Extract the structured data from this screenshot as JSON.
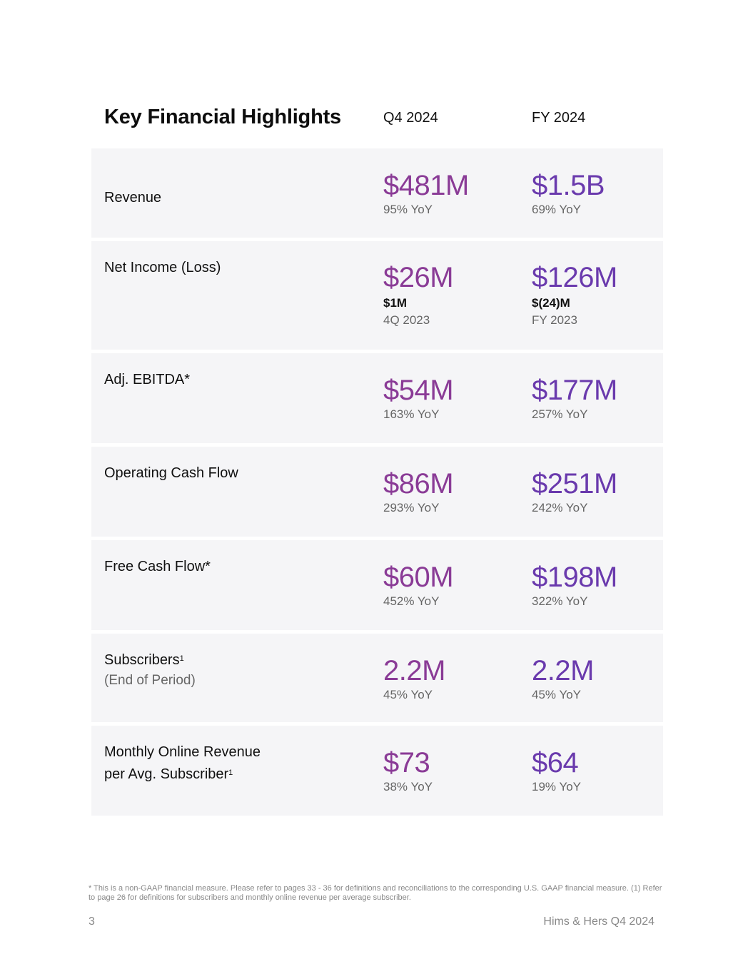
{
  "header": {
    "title": "Key Financial Highlights",
    "col_q": "Q4 2024",
    "col_fy": "FY 2024"
  },
  "rows": [
    {
      "label": "Revenue",
      "q_value": "$481M",
      "q_sub": "95% YoY",
      "fy_value": "$1.5B",
      "fy_sub": "69% YoY"
    },
    {
      "label": "Net Income (Loss)",
      "q_value": "$26M",
      "q_prior": "$1M",
      "q_sub": "4Q 2023",
      "fy_value": "$126M",
      "fy_prior": "$(24)M",
      "fy_sub": "FY 2023"
    },
    {
      "label": "Adj. EBITDA*",
      "q_value": "$54M",
      "q_sub": "163% YoY",
      "fy_value": "$177M",
      "fy_sub": "257% YoY"
    },
    {
      "label": "Operating Cash Flow",
      "q_value": "$86M",
      "q_sub": "293% YoY",
      "fy_value": "$251M",
      "fy_sub": "242% YoY"
    },
    {
      "label": "Free Cash Flow*",
      "q_value": "$60M",
      "q_sub": "452% YoY",
      "fy_value": "$198M",
      "fy_sub": "322% YoY"
    },
    {
      "label": "Subscribers",
      "label_sup": "1",
      "label_sub": "(End of Period)",
      "q_value": "2.2M",
      "q_sub": "45% YoY",
      "fy_value": "2.2M",
      "fy_sub": "45% YoY"
    },
    {
      "label": "Monthly Online Revenue",
      "label_line2": "per Avg. Subscriber",
      "label_sup": "1",
      "q_value": "$73",
      "q_sub": "38% YoY",
      "fy_value": "$64",
      "fy_sub": "19% YoY"
    }
  ],
  "footnote": "* This is a non-GAAP financial measure. Please refer to pages 33 - 36 for definitions and reconciliations to the corresponding U.S. GAAP financial measure. (1) Refer to page 26 for definitions for subscribers and monthly online revenue per average subscriber.",
  "footer": {
    "page": "3",
    "brand": "Hims & Hers Q4 2024"
  }
}
